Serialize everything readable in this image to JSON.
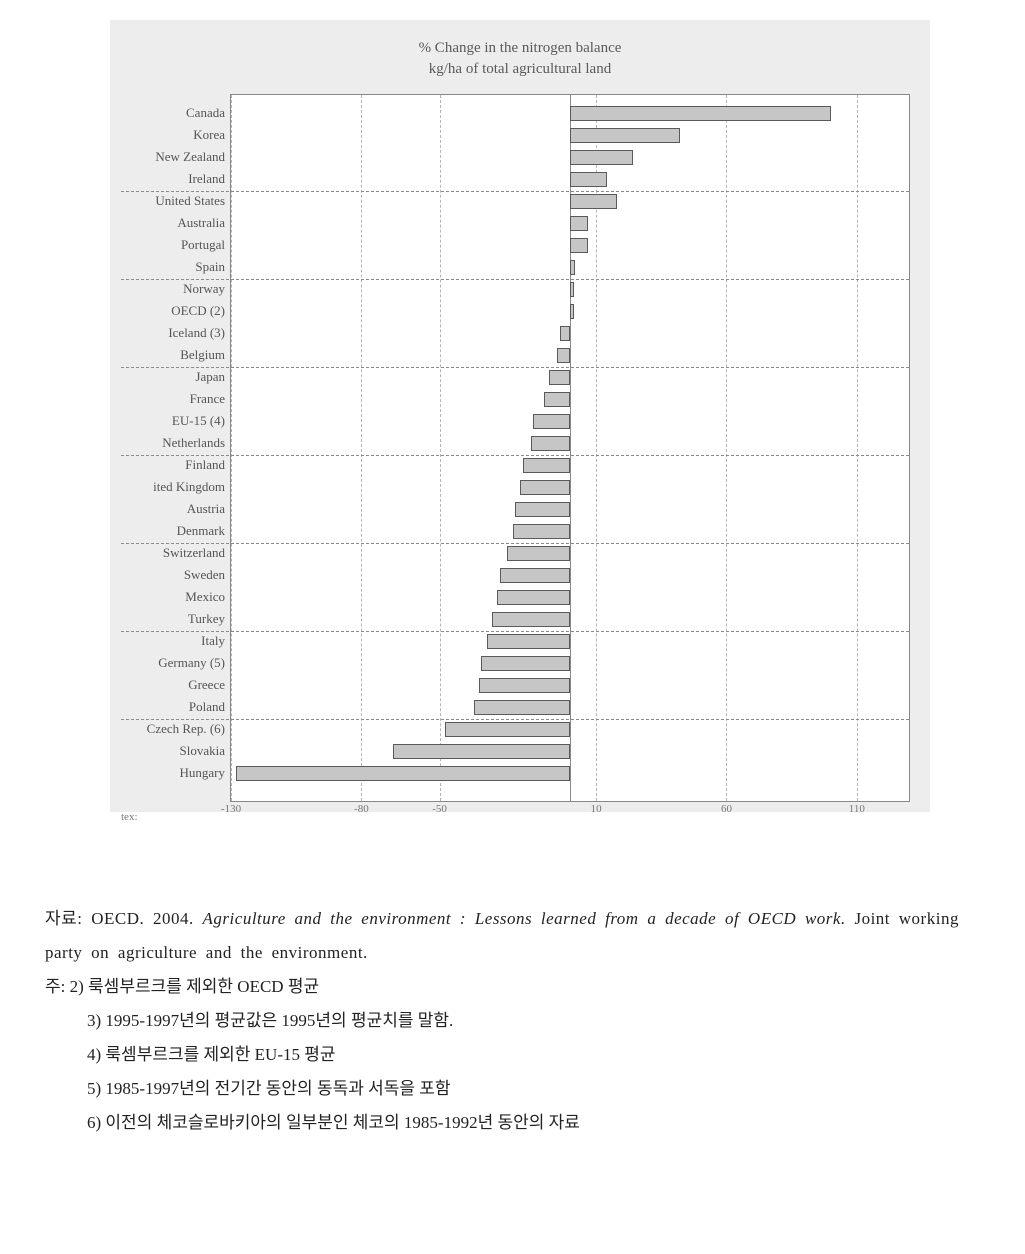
{
  "chart": {
    "type": "bar",
    "orientation": "horizontal",
    "title_line1": "% Change in the nitrogen balance",
    "title_line2": "kg/ha of total agricultural land",
    "title_fontsize": 15,
    "title_color": "#5a5a5a",
    "background_color": "#ededed",
    "plot_bg_color": "#ffffff",
    "bar_fill_color": "#c6c6c6",
    "bar_border_color": "#5a5a5a",
    "grid_color_h": "#8a8a8a",
    "grid_color_v": "#b5b5b5",
    "label_fontsize": 13,
    "label_color": "#555555",
    "xlim": [
      -130,
      130
    ],
    "x_ticks": [
      -130,
      -80,
      -50,
      10,
      60,
      110
    ],
    "x_tick_labels": [
      "-130",
      "-80",
      "-50",
      "10",
      "60",
      "110"
    ],
    "zero_line": 0,
    "corner_label": "tex:",
    "group_dividers_after_indices": [
      3,
      7,
      11,
      15,
      19,
      23,
      27
    ],
    "categories": [
      {
        "label": "Canada",
        "value": 100
      },
      {
        "label": "Korea",
        "value": 42
      },
      {
        "label": "New Zealand",
        "value": 24
      },
      {
        "label": "Ireland",
        "value": 14
      },
      {
        "label": "United States",
        "value": 18
      },
      {
        "label": "Australia",
        "value": 7
      },
      {
        "label": "Portugal",
        "value": 7
      },
      {
        "label": "Spain",
        "value": 2
      },
      {
        "label": "Norway",
        "value": 1
      },
      {
        "label": "OECD (2)",
        "value": 1
      },
      {
        "label": "Iceland (3)",
        "value": -4
      },
      {
        "label": "Belgium",
        "value": -5
      },
      {
        "label": "Japan",
        "value": -8
      },
      {
        "label": "France",
        "value": -10
      },
      {
        "label": "EU-15 (4)",
        "value": -14
      },
      {
        "label": "Netherlands",
        "value": -15
      },
      {
        "label": "Finland",
        "value": -18
      },
      {
        "label": "ited Kingdom",
        "value": -19
      },
      {
        "label": "Austria",
        "value": -21
      },
      {
        "label": "Denmark",
        "value": -22
      },
      {
        "label": "Switzerland",
        "value": -24
      },
      {
        "label": "Sweden",
        "value": -27
      },
      {
        "label": "Mexico",
        "value": -28
      },
      {
        "label": "Turkey",
        "value": -30
      },
      {
        "label": "Italy",
        "value": -32
      },
      {
        "label": "Germany (5)",
        "value": -34
      },
      {
        "label": "Greece",
        "value": -35
      },
      {
        "label": "Poland",
        "value": -37
      },
      {
        "label": "Czech Rep. (6)",
        "value": -48
      },
      {
        "label": "Slovakia",
        "value": -68
      },
      {
        "label": "Hungary",
        "value": -128
      }
    ]
  },
  "notes": {
    "source_label": "자료:",
    "source_text_1": " OECD. 2004. ",
    "source_italic": "Agriculture and the environment : Lessons learned from a decade of OECD work.",
    "source_text_2": " Joint working party on agriculture and the environment.",
    "note_label": "주:",
    "items": [
      "2) 룩셈부르크를 제외한 OECD 평균",
      "3) 1995-1997년의 평균값은 1995년의 평균치를 말함.",
      "4) 룩셈부르크를 제외한 EU-15 평균",
      "5) 1985-1997년의 전기간 동안의 동독과 서독을 포함",
      "6) 이전의 체코슬로바키아의 일부분인 체코의 1985-1992년 동안의 자료"
    ]
  }
}
